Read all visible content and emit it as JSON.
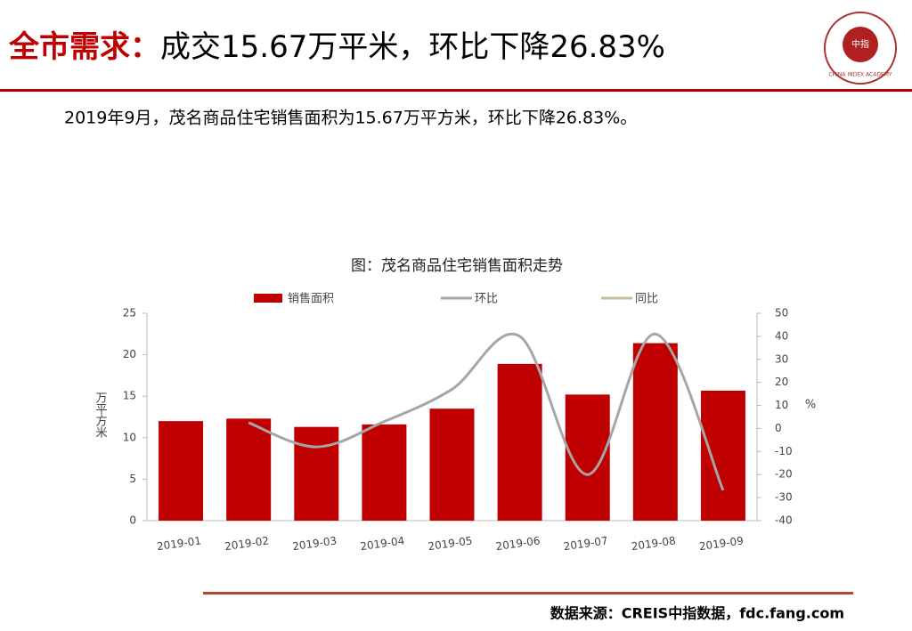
{
  "header": {
    "title_prefix": "全市需求：",
    "title": "成交15.67万平米，环比下降26.83%",
    "logo_text": "CHINA INDEX ACADEMY",
    "logo_center": "中指"
  },
  "summary": "2019年9月，茂名商品住宅销售面积为15.67万平方米，环比下降26.83%。",
  "chart_data": {
    "type": "bar",
    "title": "图：茂名商品住宅销售面积走势",
    "categories": [
      "2019-01",
      "2019-02",
      "2019-03",
      "2019-04",
      "2019-05",
      "2019-06",
      "2019-07",
      "2019-08",
      "2019-09"
    ],
    "series": [
      {
        "name": "销售面积",
        "type": "bar",
        "color": "#c00000",
        "values": [
          12.0,
          12.3,
          11.3,
          11.6,
          13.5,
          18.9,
          15.2,
          21.4,
          15.67
        ]
      },
      {
        "name": "环比",
        "type": "line",
        "axis": "y2",
        "color": "#a6a6a6",
        "values": [
          null,
          2.5,
          -8,
          3,
          17,
          40,
          -20,
          41,
          -26.83
        ]
      },
      {
        "name": "同比",
        "type": "line",
        "axis": "y2",
        "color": "#c4bd97",
        "values": [
          null,
          null,
          null,
          null,
          null,
          null,
          null,
          null,
          null
        ]
      }
    ],
    "ylabel": "万平方米",
    "y2label": "%",
    "ylim": [
      0,
      25
    ],
    "yticks": [
      0,
      5,
      10,
      15,
      20,
      25
    ],
    "y2lim": [
      -40,
      50
    ],
    "y2ticks": [
      -40,
      -30,
      -20,
      -10,
      0,
      10,
      20,
      30,
      40,
      50
    ]
  },
  "footer": {
    "source": "数据来源：CREIS中指数据，fdc.fang.com"
  }
}
